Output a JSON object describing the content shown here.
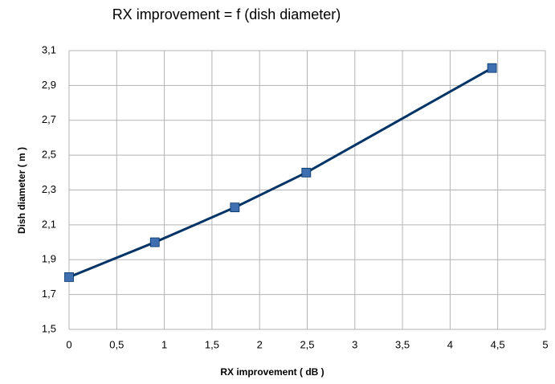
{
  "chart_data": {
    "type": "line",
    "title": "RX improvement = f (dish diameter)",
    "x_label": "RX improvement  ( dB )",
    "y_label": "Dish diameter  ( m )",
    "x": [
      0,
      0.9,
      1.74,
      2.49,
      4.44
    ],
    "series": [
      {
        "name": "Dish diameter",
        "color": "#003366",
        "marker_color": "#3f6fb0",
        "values": [
          1.8,
          2.0,
          2.2,
          2.4,
          3.0
        ]
      }
    ],
    "xlim": [
      0,
      5
    ],
    "xticks": [
      0,
      {
        "value": 0.5,
        "label": "0,5"
      },
      1,
      {
        "value": 1.5,
        "label": "1,5"
      },
      2,
      {
        "value": 2.5,
        "label": "2,5"
      },
      3,
      {
        "value": 3.5,
        "label": "3,5"
      },
      4,
      {
        "value": 4.5,
        "label": "4,5"
      },
      5
    ],
    "ylim": [
      1.5,
      3.1
    ],
    "yticks": [
      {
        "value": 1.5,
        "label": "1,5"
      },
      {
        "value": 1.7,
        "label": "1,7"
      },
      {
        "value": 1.9,
        "label": "1,9"
      },
      {
        "value": 2.1,
        "label": "2,1"
      },
      {
        "value": 2.3,
        "label": "2,3"
      },
      {
        "value": 2.5,
        "label": "2,5"
      },
      {
        "value": 2.7,
        "label": "2,7"
      },
      {
        "value": 2.9,
        "label": "2,9"
      },
      {
        "value": 3.1,
        "label": "3,1"
      }
    ],
    "grid": true
  }
}
